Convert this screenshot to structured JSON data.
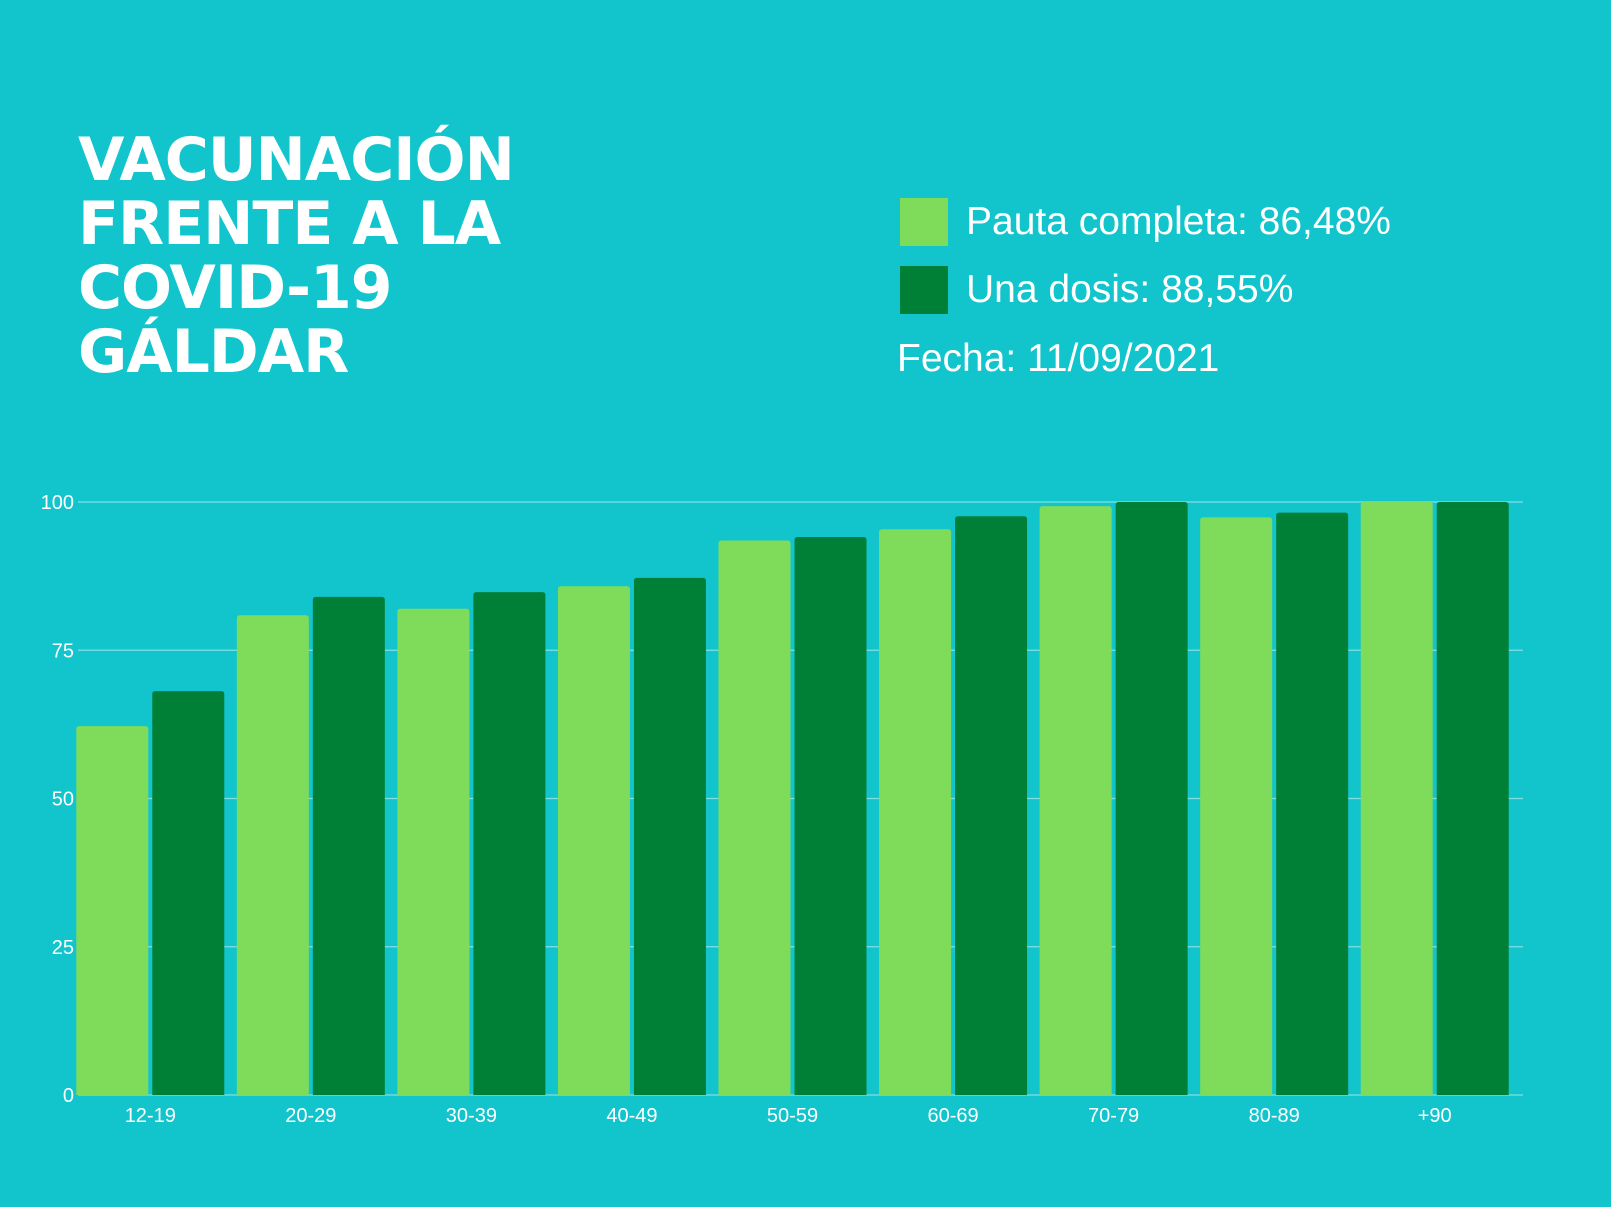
{
  "title_lines": [
    "VACUNACIÓN",
    "FRENTE A LA",
    "COVID-19",
    "GÁLDAR"
  ],
  "legend": {
    "items": [
      {
        "label": "Pauta completa: 86,48%",
        "color": "#7FDB5A"
      },
      {
        "label": "Una dosis: 88,55%",
        "color": "#008037"
      }
    ]
  },
  "date_text": "Fecha: 11/09/2021",
  "colors": {
    "background": "#12C4CC",
    "grid": "#7FE0E4",
    "text": "#ffffff"
  },
  "chart_data": {
    "type": "bar",
    "categories": [
      "12-19",
      "20-29",
      "30-39",
      "40-49",
      "50-59",
      "60-69",
      "70-79",
      "80-89",
      "+90"
    ],
    "series": [
      {
        "values": [
          62.2,
          80.9,
          82.0,
          85.8,
          93.5,
          95.4,
          99.3,
          97.4,
          100
        ]
      },
      {
        "values": [
          68.1,
          84.0,
          84.8,
          87.2,
          94.1,
          97.6,
          100,
          98.2,
          100
        ]
      }
    ],
    "y_ticks": [
      0,
      25,
      50,
      75,
      100
    ],
    "ylim": [
      0,
      100
    ],
    "grid": true,
    "legend_position": "top-right"
  }
}
